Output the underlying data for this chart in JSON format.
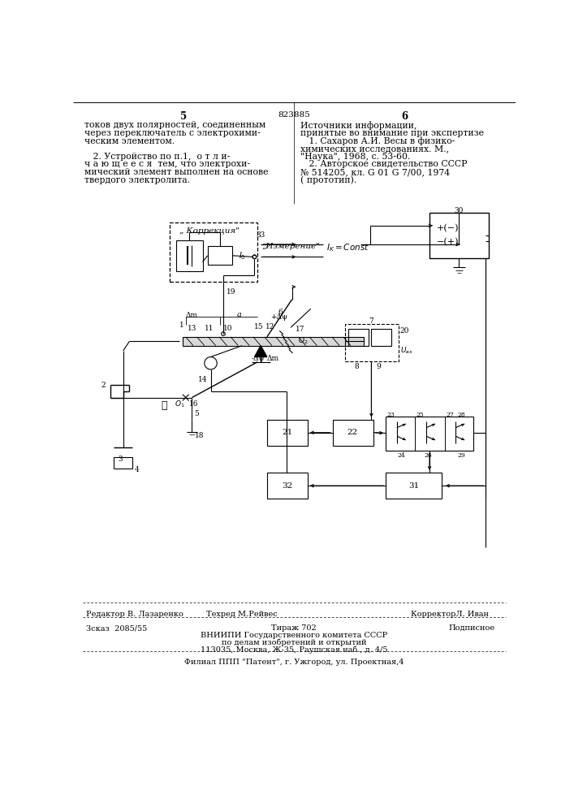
{
  "page_number_left": "5",
  "page_number_center": "823885",
  "page_number_right": "6",
  "text_left_col": [
    "токов двух полярностей, соединенным",
    "через переключатель с электрохими-",
    "ческим элементом.",
    "",
    "   2. Устройство по п.1,  о т л и-",
    "ч а ю щ е е с я  тем, что электрохи-",
    "мический элемент выполнен на основе",
    "твердого электролита."
  ],
  "text_right_col": [
    "Источники информации,",
    "принятые во внимание при экспертизе",
    "   1. Сахаров А.И. Весы в физико-",
    "химических исследованиях. М.,",
    "\"Наука\", 1968, с. 53-60.",
    "   2. Авторское свидетельство СССР",
    "№ 514205, кл. G 01 G 7/00, 1974",
    "( прототип)."
  ],
  "footer_line1_left": "Редактор В. Лазаренко",
  "footer_line1_mid": "Техред М.Рейвес",
  "footer_line1_right": "КорректорЛ. Иван",
  "footer_line2_left": "Зсказ  2085/55",
  "footer_line2_mid": "Тираж 702",
  "footer_line2_right": "Подписное",
  "footer_line3": "ВНИИПИ Государственного комитета СССР",
  "footer_line4": "по делам изобретений и открытий",
  "footer_line5": "113035, Москва, Ж-35, Раушская наб., д. 4/5",
  "footer_line6": "Филиал ППП \"Патент\", г. Ужгород, ул. Проектная,4"
}
